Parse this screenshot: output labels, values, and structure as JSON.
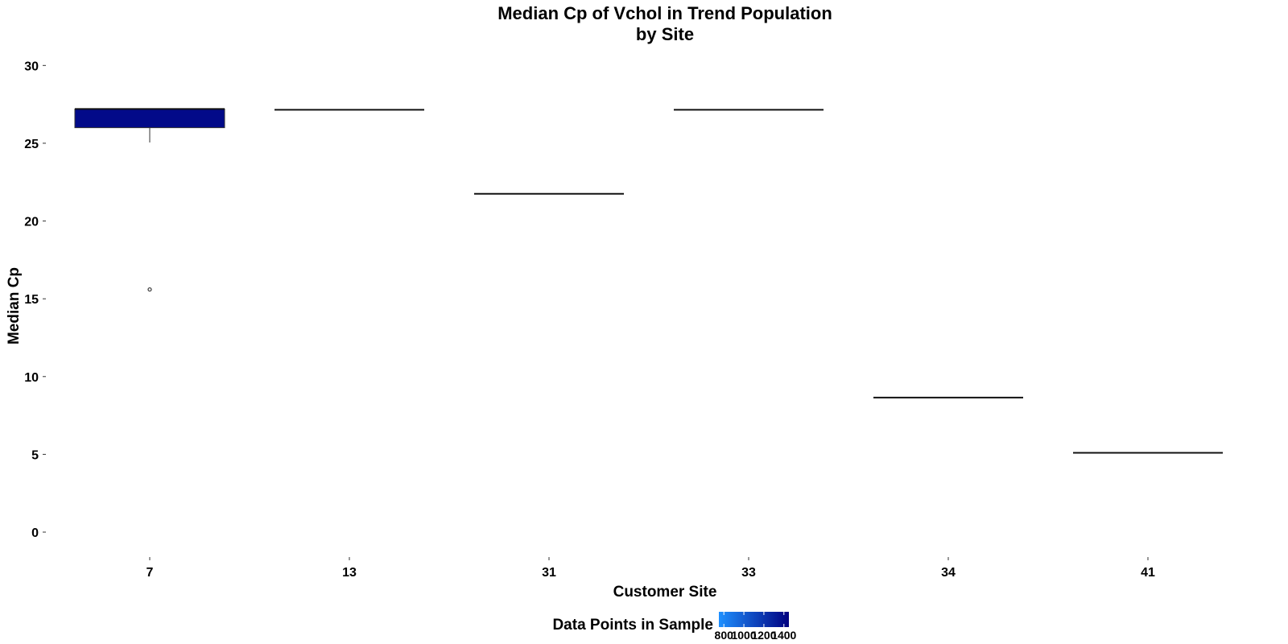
{
  "chart_data": {
    "type": "boxplot",
    "title": [
      "Median Cp of Vchol in Trend Population",
      "by Site"
    ],
    "xlabel": "Customer Site",
    "ylabel": "Median Cp",
    "ylim": [
      -1.5,
      31
    ],
    "yticks": [
      0,
      5,
      10,
      15,
      20,
      25,
      30
    ],
    "grid": false,
    "categories": [
      "7",
      "13",
      "31",
      "33",
      "34",
      "41"
    ],
    "boxes": [
      {
        "site": "7",
        "q1": 26.0,
        "median": 27.2,
        "q3": 27.2,
        "whisker_low": 25.05,
        "whisker_high": 27.2,
        "outliers": [
          15.6
        ],
        "count": 1400
      },
      {
        "site": "13",
        "q1": 27.15,
        "median": 27.15,
        "q3": 27.15,
        "whisker_low": 27.15,
        "whisker_high": 27.15,
        "outliers": [],
        "count": null
      },
      {
        "site": "31",
        "q1": 21.75,
        "median": 21.75,
        "q3": 21.75,
        "whisker_low": 21.75,
        "whisker_high": 21.75,
        "outliers": [],
        "count": null
      },
      {
        "site": "33",
        "q1": 27.15,
        "median": 27.15,
        "q3": 27.15,
        "whisker_low": 27.15,
        "whisker_high": 27.15,
        "outliers": [],
        "count": null
      },
      {
        "site": "34",
        "q1": 8.65,
        "median": 8.65,
        "q3": 8.65,
        "whisker_low": 8.65,
        "whisker_high": 8.65,
        "outliers": [],
        "count": null
      },
      {
        "site": "41",
        "q1": 5.1,
        "median": 5.1,
        "q3": 5.1,
        "whisker_low": 5.1,
        "whisker_high": 5.1,
        "outliers": [],
        "count": null
      }
    ],
    "legend": {
      "title": "Data Points in Sample",
      "position": "bottom",
      "low_color": "#1E90FF",
      "high_color": "#000080",
      "range": [
        750,
        1450
      ],
      "ticks": [
        "800",
        "1000",
        "1200",
        "1400"
      ]
    }
  }
}
